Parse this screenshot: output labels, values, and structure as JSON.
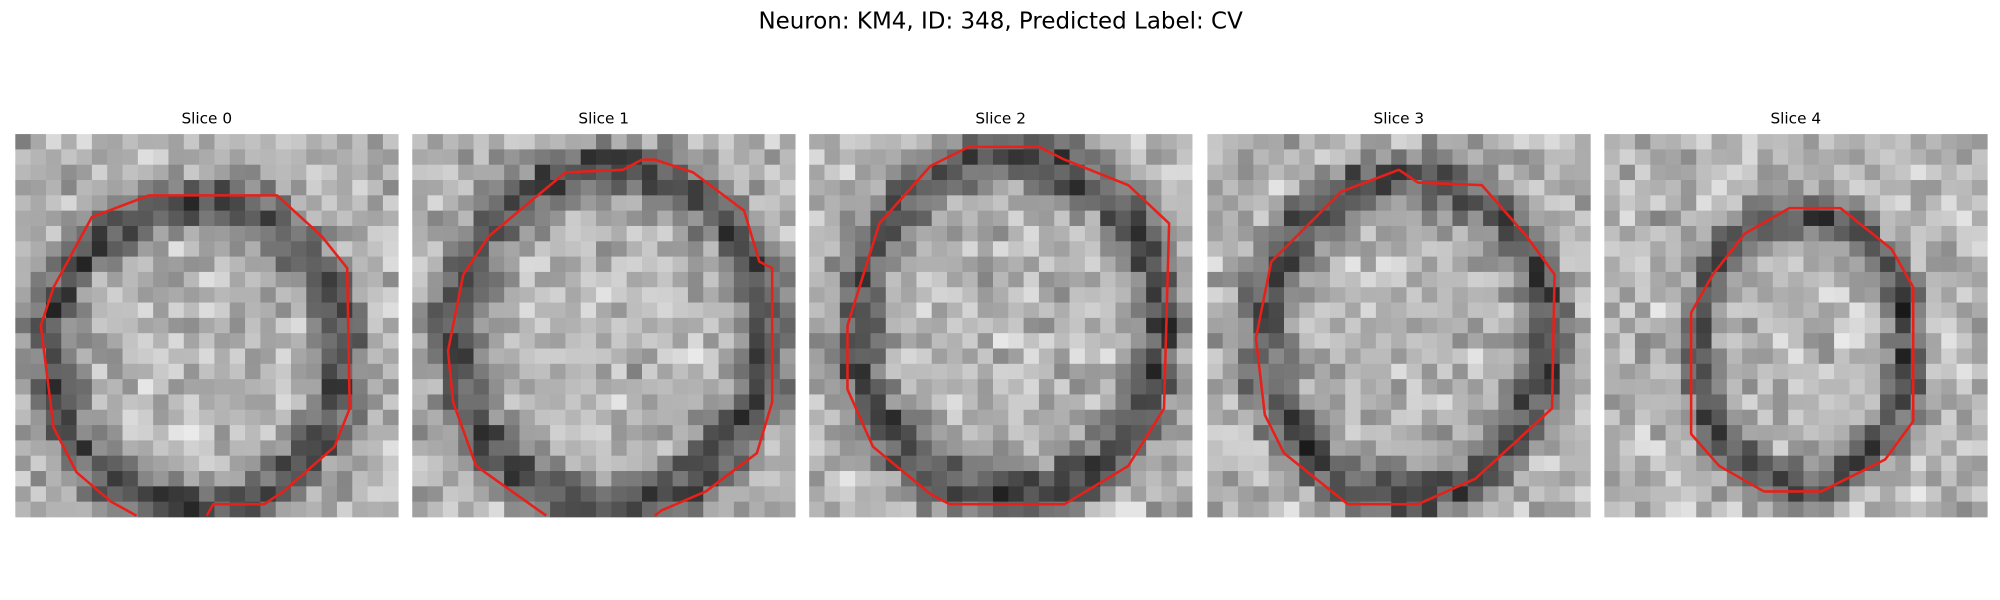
{
  "title": "Neuron: KM4, ID: 348, Predicted Label: CV",
  "panels": [
    {
      "label": "Slice 0"
    },
    {
      "label": "Slice 1"
    },
    {
      "label": "Slice 2"
    },
    {
      "label": "Slice 3"
    },
    {
      "label": "Slice 4"
    }
  ]
}
